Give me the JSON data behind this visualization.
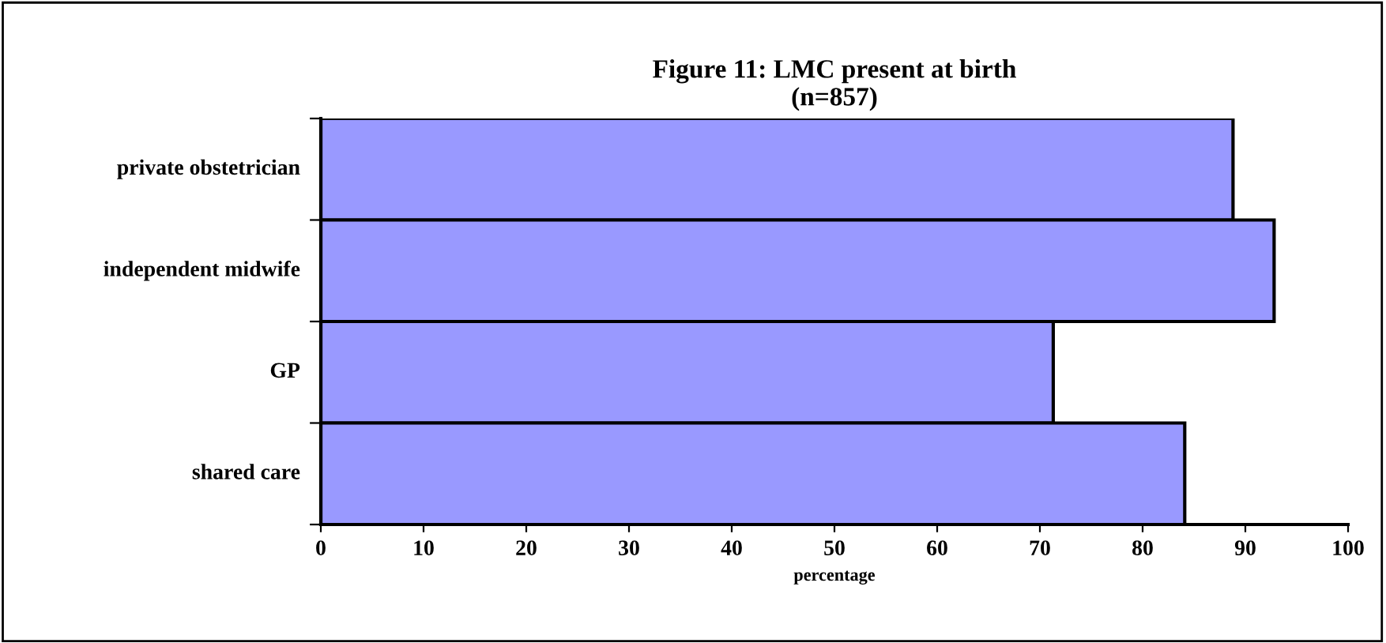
{
  "chart_data": {
    "type": "bar",
    "orientation": "horizontal",
    "title": "Figure 11: LMC present at birth\n(n=857)",
    "xlabel": "percentage",
    "categories": [
      "private obstetrician",
      "independent midwife",
      "GP",
      "shared care"
    ],
    "values": [
      88.8,
      92.8,
      71.3,
      84.1
    ],
    "color": "#9999ff",
    "xlim": [
      0,
      100
    ],
    "xticks": [
      0,
      10,
      20,
      30,
      40,
      50,
      60,
      70,
      80,
      90,
      100
    ],
    "grid": false
  }
}
